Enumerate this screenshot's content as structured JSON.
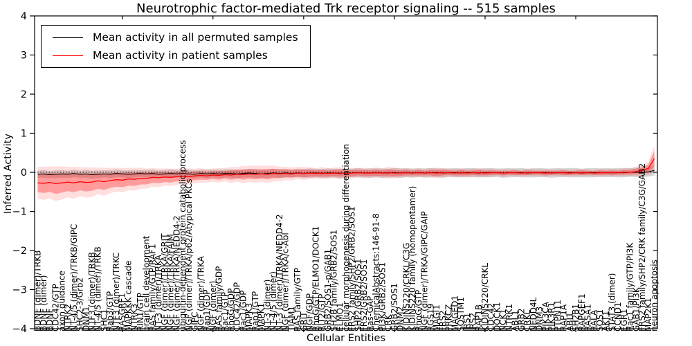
{
  "figure": {
    "title": "Neurotrophic factor-mediated Trk receptor signaling -- 515 samples"
  },
  "chart_data": {
    "type": "line",
    "title": "Neurotrophic factor-mediated Trk receptor signaling -- 515 samples",
    "xlabel": "Cellular Entities",
    "ylabel": "Inferred Activity",
    "ylim": [
      -4,
      4
    ],
    "yticks": [
      "4",
      "3",
      "2",
      "1",
      "0",
      "−1",
      "−2",
      "−3",
      "−4"
    ],
    "ytick_values": [
      4,
      3,
      2,
      1,
      0,
      -1,
      -2,
      -3,
      -4
    ],
    "grid": false,
    "legend_position": "upper left",
    "zero_line": {
      "value": 0,
      "style": "dotted",
      "color": "#000000"
    },
    "colors": {
      "permuted_line": "#000000",
      "permuted_band": "rgba(0,0,0,0.16)",
      "patient_line": "#ff0000",
      "patient_band": "rgba(255,0,0,0.30)",
      "patient_band_outer": "rgba(255,0,0,0.13)"
    },
    "band_outer_scale": 1.7,
    "categories": [
      "BDNF (dimer)/TRKB",
      "BDNF (dimer)",
      "BDNF",
      "CDC42/GTP",
      "axon guidance",
      "NTRK2",
      "NT-4/5 (dimer)/TRKB/GIPC",
      "SHC2-3/Grb2",
      "DNM1",
      "NTF3 (dimer)/TRKB",
      "NT-4/5 (dimer)/TRKB",
      "SHC1",
      "Rab3/GTP",
      "NTF3 (dimer)/TRKC",
      "RASGRF1",
      "MAPKKK cascade",
      "NTRK3",
      "RIN1/GTP",
      "brain cell development",
      "RAS family/GTP/RAF1",
      "NT-3 (dimer)/TRKA",
      "NGF (dimer)/TRKA/GRIT",
      "NGF (dimer)/TRKA/FAIM",
      "NGF (dimer)/TRKA/NEDD4-2",
      "ubiquitin-dependent protein catabolic process",
      "NGF (dimer)/TRKA/p62/Atypical PKCs",
      "GIPC",
      "NGF (dimer)/TRKA",
      "Rap1/GDP",
      "NGF (dimer)",
      "RAS family/GDP",
      "Rac1/GTP",
      "RhoG/GDP",
      "CDC42/GDP",
      "Rac1/GDP",
      "MAPK3",
      "Rap1/GTP",
      "MAPK1",
      "NT-3 (dimer)",
      "NT-4/5 (dimer)",
      "NT-3 (dimer)/TRKA/NEDD4-2",
      "NGF (dimer)/TRKA/c-Abl",
      "TIAM1",
      "RAS family/GTP",
      "GRIT",
      "NGF/GDP",
      "RhoG/GTP/ELMO1/DOCK1",
      "RIT2/GTP",
      "GRB2/SOS1-p/GAB1",
      "SH2B family/GRB2/SOS1",
      "ELMO1",
      "cellular morphogenesis during differentiation",
      "FRS2 family/SHP2/GRB2/SOS1",
      "SHP2/GRB2/SOS1",
      "FRS2/GRB2/SOS1",
      "Ras-GAP",
      "ChemicalAbstracts:146-91-8",
      "PI3K/GRB2/SOS1",
      "CRK",
      "GRB2/SOS1",
      "DNM2",
      "KIDINS220/CRKL/C3G",
      "KIDINS220 family (homopentamer)",
      "RhoG/GTP",
      "NGF (dimer)/TRKA/GIPC/GAIP",
      "RGS19",
      "MAGI1",
      "FRS2",
      "PRKCZ",
      "MAGED1",
      "SQSTM1",
      "IRS1",
      "IRS2",
      "RAP1B",
      "KIDINS220/CRKL",
      "CDC42",
      "DOCK1",
      "NCK1",
      "NTRK1",
      "ABL1",
      "GRB2",
      "CRKL",
      "NEDD4L",
      "DNM3",
      "PIK3CA",
      "PIK3R1",
      "PTPN11",
      "RAP1A",
      "ABI1",
      "SH2B1",
      "RAPGEF1",
      "RASA1",
      "RALA",
      "SOS1",
      "AKT1",
      "STAT3 (dimer)",
      "CCND1",
      "EGR1",
      "Rac1 family/GTP/PI3K",
      "GAB1/PI3K",
      "FRS2 family/SHP2/CRK family/C3G/GAB2",
      "MAP2K1",
      "neuron apoptosis"
    ],
    "series": [
      {
        "name": "Mean activity in all permuted samples",
        "color": "#000000",
        "values": [
          -0.05,
          -0.04,
          -0.06,
          -0.05,
          -0.04,
          -0.05,
          -0.03,
          -0.05,
          -0.04,
          -0.06,
          -0.05,
          -0.04,
          -0.05,
          -0.03,
          -0.04,
          -0.05,
          -0.04,
          -0.03,
          -0.04,
          -0.03,
          -0.05,
          -0.04,
          -0.03,
          -0.04,
          -0.03,
          -0.04,
          -0.05,
          -0.03,
          -0.04,
          -0.03,
          -0.04,
          -0.03,
          -0.03,
          -0.04,
          -0.03,
          -0.02,
          -0.03,
          -0.04,
          -0.03,
          -0.02,
          -0.03,
          -0.02,
          -0.03,
          -0.02,
          -0.03,
          -0.02,
          -0.02,
          -0.03,
          -0.02,
          -0.02,
          -0.03,
          -0.02,
          -0.02,
          -0.01,
          -0.02,
          -0.02,
          -0.01,
          -0.02,
          -0.02,
          -0.01,
          -0.02,
          -0.01,
          -0.02,
          -0.01,
          -0.02,
          -0.01,
          -0.01,
          -0.02,
          -0.01,
          -0.01,
          -0.02,
          -0.01,
          -0.01,
          -0.02,
          -0.01,
          -0.01,
          -0.01,
          -0.02,
          -0.01,
          -0.01,
          -0.01,
          -0.02,
          -0.01,
          -0.01,
          -0.01,
          -0.02,
          -0.01,
          -0.01,
          -0.01,
          -0.01,
          -0.02,
          -0.01,
          -0.01,
          -0.01,
          -0.01,
          -0.01,
          -0.01,
          -0.01,
          0.0,
          0.0,
          0.0,
          0.01,
          0.05
        ],
        "band_halfwidth": [
          0.09,
          0.1,
          0.09,
          0.1,
          0.1,
          0.09,
          0.1,
          0.09,
          0.1,
          0.1,
          0.1,
          0.09,
          0.1,
          0.1,
          0.09,
          0.1,
          0.1,
          0.09,
          0.1,
          0.1,
          0.1,
          0.1,
          0.11,
          0.1,
          0.1,
          0.11,
          0.1,
          0.1,
          0.11,
          0.1,
          0.11,
          0.1,
          0.11,
          0.11,
          0.1,
          0.11,
          0.11,
          0.1,
          0.11,
          0.11,
          0.11,
          0.11,
          0.1,
          0.11,
          0.11,
          0.12,
          0.11,
          0.11,
          0.12,
          0.11,
          0.12,
          0.11,
          0.11,
          0.12,
          0.11,
          0.12,
          0.11,
          0.12,
          0.11,
          0.12,
          0.12,
          0.11,
          0.12,
          0.11,
          0.12,
          0.12,
          0.11,
          0.12,
          0.11,
          0.12,
          0.11,
          0.12,
          0.12,
          0.11,
          0.12,
          0.12,
          0.11,
          0.12,
          0.12,
          0.11,
          0.12,
          0.11,
          0.12,
          0.12,
          0.11,
          0.12,
          0.12,
          0.11,
          0.12,
          0.12,
          0.11,
          0.12,
          0.12,
          0.11,
          0.12,
          0.11,
          0.12,
          0.12,
          0.11,
          0.12,
          0.12,
          0.12,
          0.13
        ]
      },
      {
        "name": "Mean activity in patient samples",
        "color": "#ff0000",
        "values": [
          -0.27,
          -0.28,
          -0.26,
          -0.29,
          -0.27,
          -0.25,
          -0.27,
          -0.24,
          -0.26,
          -0.25,
          -0.22,
          -0.24,
          -0.21,
          -0.19,
          -0.2,
          -0.17,
          -0.18,
          -0.15,
          -0.16,
          -0.13,
          -0.14,
          -0.12,
          -0.13,
          -0.11,
          -0.1,
          -0.11,
          -0.09,
          -0.08,
          -0.09,
          -0.07,
          -0.08,
          -0.06,
          -0.07,
          -0.05,
          -0.06,
          -0.04,
          -0.05,
          -0.04,
          -0.05,
          -0.03,
          -0.04,
          -0.03,
          -0.04,
          -0.02,
          -0.03,
          -0.02,
          -0.03,
          -0.02,
          -0.03,
          -0.02,
          -0.02,
          -0.03,
          -0.02,
          -0.01,
          -0.02,
          -0.02,
          -0.01,
          -0.02,
          -0.01,
          -0.02,
          -0.02,
          -0.01,
          -0.02,
          -0.01,
          -0.02,
          -0.01,
          -0.02,
          -0.01,
          -0.01,
          -0.02,
          -0.01,
          -0.02,
          -0.01,
          -0.01,
          -0.02,
          -0.01,
          -0.01,
          -0.02,
          -0.01,
          -0.01,
          -0.02,
          -0.01,
          -0.01,
          -0.01,
          -0.02,
          -0.01,
          -0.01,
          -0.01,
          -0.02,
          -0.01,
          -0.01,
          -0.01,
          -0.02,
          -0.01,
          -0.01,
          -0.01,
          -0.01,
          0.0,
          0.0,
          0.02,
          0.05,
          0.1,
          0.35
        ],
        "band_halfwidth": [
          0.24,
          0.25,
          0.24,
          0.26,
          0.25,
          0.23,
          0.24,
          0.22,
          0.23,
          0.22,
          0.2,
          0.21,
          0.19,
          0.18,
          0.18,
          0.17,
          0.17,
          0.16,
          0.15,
          0.14,
          0.14,
          0.13,
          0.13,
          0.12,
          0.12,
          0.12,
          0.11,
          0.11,
          0.1,
          0.1,
          0.11,
          0.1,
          0.12,
          0.11,
          0.13,
          0.12,
          0.13,
          0.12,
          0.13,
          0.12,
          0.11,
          0.1,
          0.1,
          0.09,
          0.1,
          0.09,
          0.08,
          0.09,
          0.08,
          0.08,
          0.09,
          0.08,
          0.08,
          0.07,
          0.08,
          0.07,
          0.08,
          0.07,
          0.09,
          0.08,
          0.07,
          0.07,
          0.06,
          0.07,
          0.06,
          0.07,
          0.08,
          0.07,
          0.06,
          0.06,
          0.07,
          0.06,
          0.06,
          0.07,
          0.06,
          0.06,
          0.05,
          0.06,
          0.05,
          0.06,
          0.05,
          0.06,
          0.05,
          0.05,
          0.06,
          0.05,
          0.05,
          0.06,
          0.05,
          0.05,
          0.06,
          0.05,
          0.05,
          0.06,
          0.05,
          0.06,
          0.05,
          0.06,
          0.06,
          0.07,
          0.08,
          0.1,
          0.2
        ]
      }
    ]
  }
}
